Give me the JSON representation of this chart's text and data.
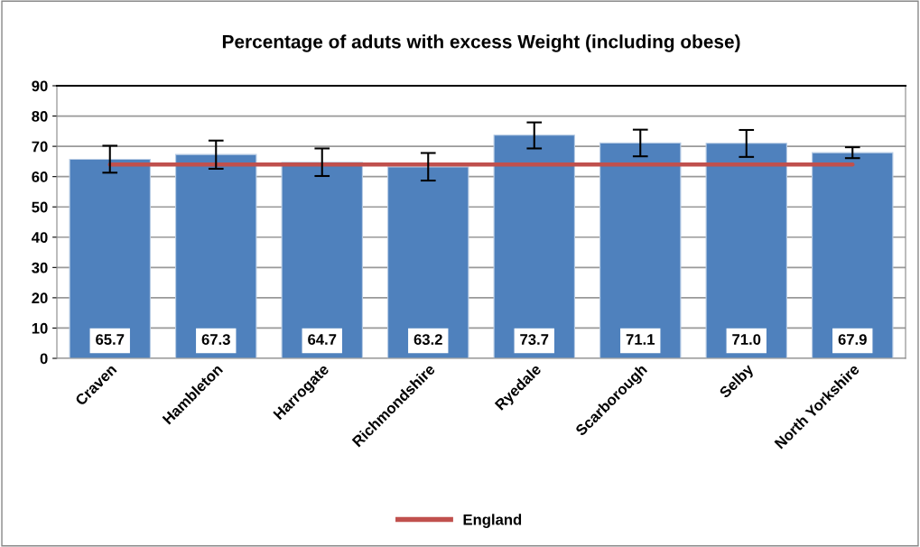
{
  "chart_data": {
    "type": "bar",
    "title": "Percentage of aduts with excess Weight (including obese)",
    "categories": [
      "Craven",
      "Hambleton",
      "Harrogate",
      "Richmondshire",
      "Ryedale",
      "Scarborough",
      "Selby",
      "North Yorkshire"
    ],
    "series": [
      {
        "color": "#4f81bd",
        "values": [
          65.7,
          67.3,
          64.7,
          63.2,
          73.7,
          71.1,
          71.0,
          67.9
        ],
        "value_labels": [
          "65.7",
          "67.3",
          "64.7",
          "63.2",
          "73.7",
          "71.1",
          "71.0",
          "67.9"
        ],
        "errors": [
          [
            61.3,
            70.2
          ],
          [
            62.6,
            71.9
          ],
          [
            60.2,
            69.3
          ],
          [
            58.7,
            67.8
          ],
          [
            69.3,
            77.9
          ],
          [
            66.7,
            75.5
          ],
          [
            66.5,
            75.4
          ],
          [
            66.1,
            69.7
          ]
        ]
      },
      {
        "type": "line",
        "name": "England",
        "color": "#c0504d",
        "values": [
          64.0,
          64.0,
          64.0,
          64.0,
          64.0,
          64.0,
          64.0,
          64.0
        ]
      }
    ],
    "ylim": [
      0,
      90
    ],
    "yticks": [
      0,
      10,
      20,
      30,
      40,
      50,
      60,
      70,
      80,
      90
    ],
    "grid": "y",
    "legend": "bottom"
  }
}
